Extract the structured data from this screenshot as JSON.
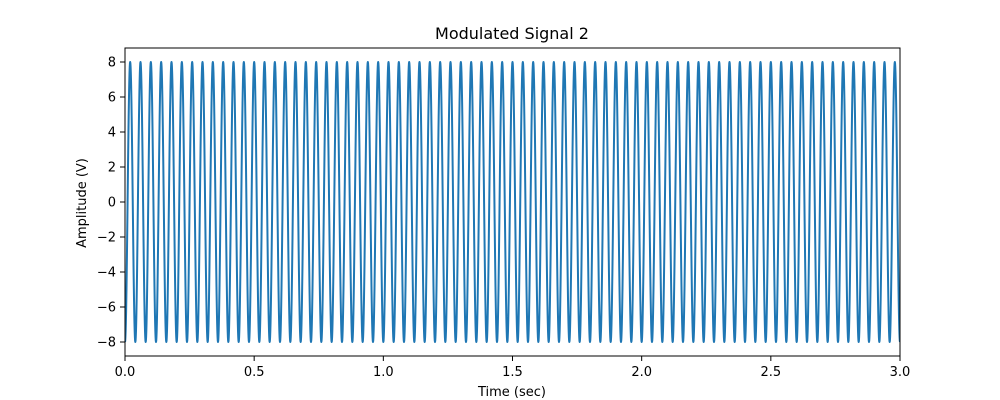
{
  "chart_data": {
    "type": "line",
    "title": "Modulated Signal 2",
    "xlabel": "Time (sec)",
    "ylabel": "Amplitude (V)",
    "xlim": [
      0.0,
      3.0
    ],
    "ylim": [
      -8.8,
      8.8
    ],
    "xticks": [
      0.0,
      0.5,
      1.0,
      1.5,
      2.0,
      2.5,
      3.0
    ],
    "xtick_labels": [
      "0.0",
      "0.5",
      "1.0",
      "1.5",
      "2.0",
      "2.5",
      "3.0"
    ],
    "yticks": [
      -8,
      -6,
      -4,
      -2,
      0,
      2,
      4,
      6,
      8
    ],
    "ytick_labels": [
      "−8",
      "−6",
      "−4",
      "−2",
      "0",
      "2",
      "4",
      "6",
      "8"
    ],
    "grid": false,
    "series": [
      {
        "color": "#1f77b4",
        "amplitude": 8,
        "start_value": -8,
        "cycle_count": 75,
        "frequency_hz": 25,
        "x_start": 0.0,
        "x_end": 3.0
      }
    ]
  }
}
